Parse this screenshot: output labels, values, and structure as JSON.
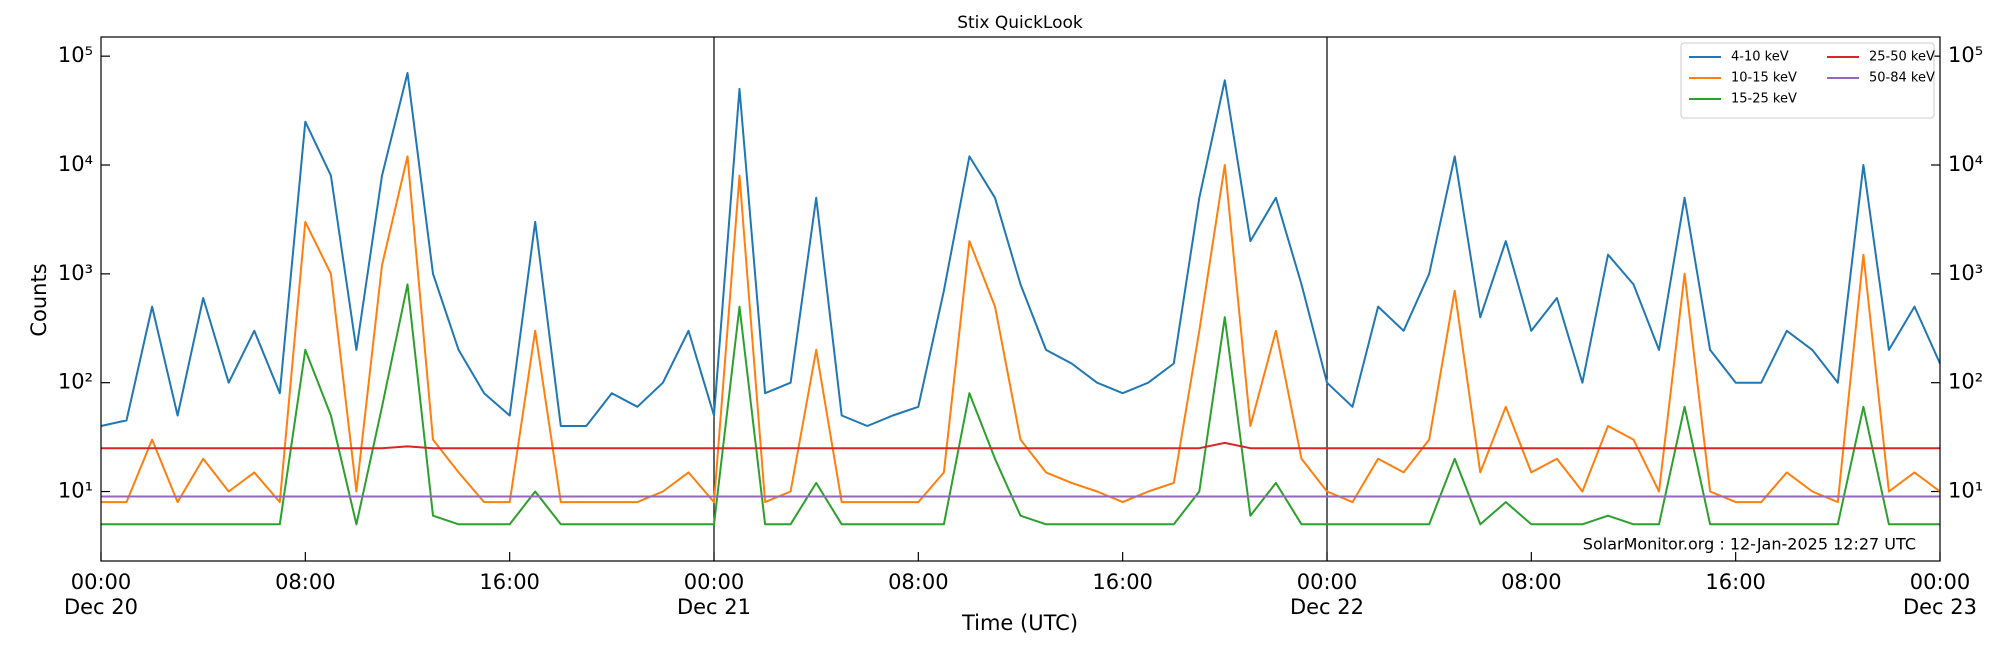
{
  "chart_data": {
    "type": "line",
    "title": "Stix QuickLook",
    "x_label": "Time (UTC)",
    "y_label": "Counts",
    "annotation": "SolarMonitor.org : 12-Jan-2025 12:27 UTC",
    "log_y": true,
    "legend": "upper right",
    "xlim": [
      "Dec 20 00:00",
      "Dec 23 00:00"
    ],
    "xticks": [
      {
        "value": "Dec 20 00:00",
        "label": [
          "00:00",
          "Dec 20"
        ]
      },
      {
        "value": "Dec 20 08:00",
        "label": "08:00"
      },
      {
        "value": "Dec 20 16:00",
        "label": "16:00"
      },
      {
        "value": "Dec 21 00:00",
        "label": [
          "00:00",
          "Dec 21"
        ]
      },
      {
        "value": "Dec 21 08:00",
        "label": "08:00"
      },
      {
        "value": "Dec 21 16:00",
        "label": "16:00"
      },
      {
        "value": "Dec 22 00:00",
        "label": [
          "00:00",
          "Dec 22"
        ]
      },
      {
        "value": "Dec 22 08:00",
        "label": "08:00"
      },
      {
        "value": "Dec 22 16:00",
        "label": "16:00"
      },
      {
        "value": "Dec 23 00:00",
        "label": [
          "00:00",
          "Dec 23"
        ]
      }
    ],
    "ylim": [
      2.3,
      150000
    ],
    "yticks": [
      {
        "value": 10,
        "label": "10¹"
      },
      {
        "value": 100,
        "label": "10²"
      },
      {
        "value": 1000,
        "label": "10³"
      },
      {
        "value": 10000,
        "label": "10⁴"
      },
      {
        "value": 100000,
        "label": "10⁵"
      }
    ],
    "x": [
      "Dec 20 00:00",
      "Dec 20 01:00",
      "Dec 20 02:00",
      "Dec 20 03:00",
      "Dec 20 04:00",
      "Dec 20 05:00",
      "Dec 20 06:00",
      "Dec 20 07:00",
      "Dec 20 08:00",
      "Dec 20 09:00",
      "Dec 20 10:00",
      "Dec 20 11:00",
      "Dec 20 12:00",
      "Dec 20 13:00",
      "Dec 20 14:00",
      "Dec 20 15:00",
      "Dec 20 16:00",
      "Dec 20 17:00",
      "Dec 20 18:00",
      "Dec 20 19:00",
      "Dec 20 20:00",
      "Dec 20 21:00",
      "Dec 20 22:00",
      "Dec 20 23:00",
      "Dec 21 00:00",
      "Dec 21 01:00",
      "Dec 21 02:00",
      "Dec 21 03:00",
      "Dec 21 04:00",
      "Dec 21 05:00",
      "Dec 21 06:00",
      "Dec 21 07:00",
      "Dec 21 08:00",
      "Dec 21 09:00",
      "Dec 21 10:00",
      "Dec 21 11:00",
      "Dec 21 12:00",
      "Dec 21 13:00",
      "Dec 21 14:00",
      "Dec 21 15:00",
      "Dec 21 16:00",
      "Dec 21 17:00",
      "Dec 21 18:00",
      "Dec 21 19:00",
      "Dec 21 20:00",
      "Dec 21 21:00",
      "Dec 21 22:00",
      "Dec 21 23:00",
      "Dec 22 00:00",
      "Dec 22 01:00",
      "Dec 22 02:00",
      "Dec 22 03:00",
      "Dec 22 04:00",
      "Dec 22 05:00",
      "Dec 22 06:00",
      "Dec 22 07:00",
      "Dec 22 08:00",
      "Dec 22 09:00",
      "Dec 22 10:00",
      "Dec 22 11:00",
      "Dec 22 12:00",
      "Dec 22 13:00",
      "Dec 22 14:00",
      "Dec 22 15:00",
      "Dec 22 16:00",
      "Dec 22 17:00",
      "Dec 22 18:00",
      "Dec 22 19:00",
      "Dec 22 20:00",
      "Dec 22 21:00",
      "Dec 22 22:00",
      "Dec 22 23:00",
      "Dec 23 00:00"
    ],
    "series": [
      {
        "name": "4-10 keV",
        "color": "#1f77b4",
        "values": [
          40,
          45,
          500,
          50,
          600,
          100,
          300,
          80,
          25000,
          8000,
          200,
          8000,
          70000,
          1000,
          200,
          80,
          50,
          3000,
          40,
          40,
          80,
          60,
          100,
          300,
          50,
          50000,
          80,
          100,
          5000,
          50,
          40,
          50,
          60,
          700,
          12000,
          5000,
          800,
          200,
          150,
          100,
          80,
          100,
          150,
          5000,
          60000,
          2000,
          5000,
          800,
          100,
          60,
          500,
          300,
          1000,
          12000,
          400,
          2000,
          300,
          600,
          100,
          1500,
          800,
          200,
          5000,
          200,
          100,
          100,
          300,
          200,
          100,
          10000,
          200,
          500,
          150
        ]
      },
      {
        "name": "10-15 keV",
        "color": "#ff7f0e",
        "values": [
          8,
          8,
          30,
          8,
          20,
          10,
          15,
          8,
          3000,
          1000,
          10,
          1200,
          12000,
          30,
          15,
          8,
          8,
          300,
          8,
          8,
          8,
          8,
          10,
          15,
          8,
          8000,
          8,
          10,
          200,
          8,
          8,
          8,
          8,
          15,
          2000,
          500,
          30,
          15,
          12,
          10,
          8,
          10,
          12,
          300,
          10000,
          40,
          300,
          20,
          10,
          8,
          20,
          15,
          30,
          700,
          15,
          60,
          15,
          20,
          10,
          40,
          30,
          10,
          1000,
          10,
          8,
          8,
          15,
          10,
          8,
          1500,
          10,
          15,
          10
        ]
      },
      {
        "name": "15-25 keV",
        "color": "#2ca02c",
        "values": [
          5,
          5,
          5,
          5,
          5,
          5,
          5,
          5,
          200,
          50,
          5,
          60,
          800,
          6,
          5,
          5,
          5,
          10,
          5,
          5,
          5,
          5,
          5,
          5,
          5,
          500,
          5,
          5,
          12,
          5,
          5,
          5,
          5,
          5,
          80,
          20,
          6,
          5,
          5,
          5,
          5,
          5,
          5,
          10,
          400,
          6,
          12,
          5,
          5,
          5,
          5,
          5,
          5,
          20,
          5,
          8,
          5,
          5,
          5,
          6,
          5,
          5,
          60,
          5,
          5,
          5,
          5,
          5,
          5,
          60,
          5,
          5,
          5
        ]
      },
      {
        "name": "25-50 keV",
        "color": "#d62728",
        "values": [
          25,
          25,
          25,
          25,
          25,
          25,
          25,
          25,
          25,
          25,
          25,
          25,
          26,
          25,
          25,
          25,
          25,
          25,
          25,
          25,
          25,
          25,
          25,
          25,
          25,
          25,
          25,
          25,
          25,
          25,
          25,
          25,
          25,
          25,
          25,
          25,
          25,
          25,
          25,
          25,
          25,
          25,
          25,
          25,
          28,
          25,
          25,
          25,
          25,
          25,
          25,
          25,
          25,
          25,
          25,
          25,
          25,
          25,
          25,
          25,
          25,
          25,
          25,
          25,
          25,
          25,
          25,
          25,
          25,
          25,
          25,
          25,
          25
        ]
      },
      {
        "name": "50-84 keV",
        "color": "#9467bd",
        "values": [
          9,
          9,
          9,
          9,
          9,
          9,
          9,
          9,
          9,
          9,
          9,
          9,
          9,
          9,
          9,
          9,
          9,
          9,
          9,
          9,
          9,
          9,
          9,
          9,
          9,
          9,
          9,
          9,
          9,
          9,
          9,
          9,
          9,
          9,
          9,
          9,
          9,
          9,
          9,
          9,
          9,
          9,
          9,
          9,
          9,
          9,
          9,
          9,
          9,
          9,
          9,
          9,
          9,
          9,
          9,
          9,
          9,
          9,
          9,
          9,
          9,
          9,
          9,
          9,
          9,
          9,
          9,
          9,
          9,
          9,
          9,
          9,
          9
        ]
      }
    ]
  }
}
